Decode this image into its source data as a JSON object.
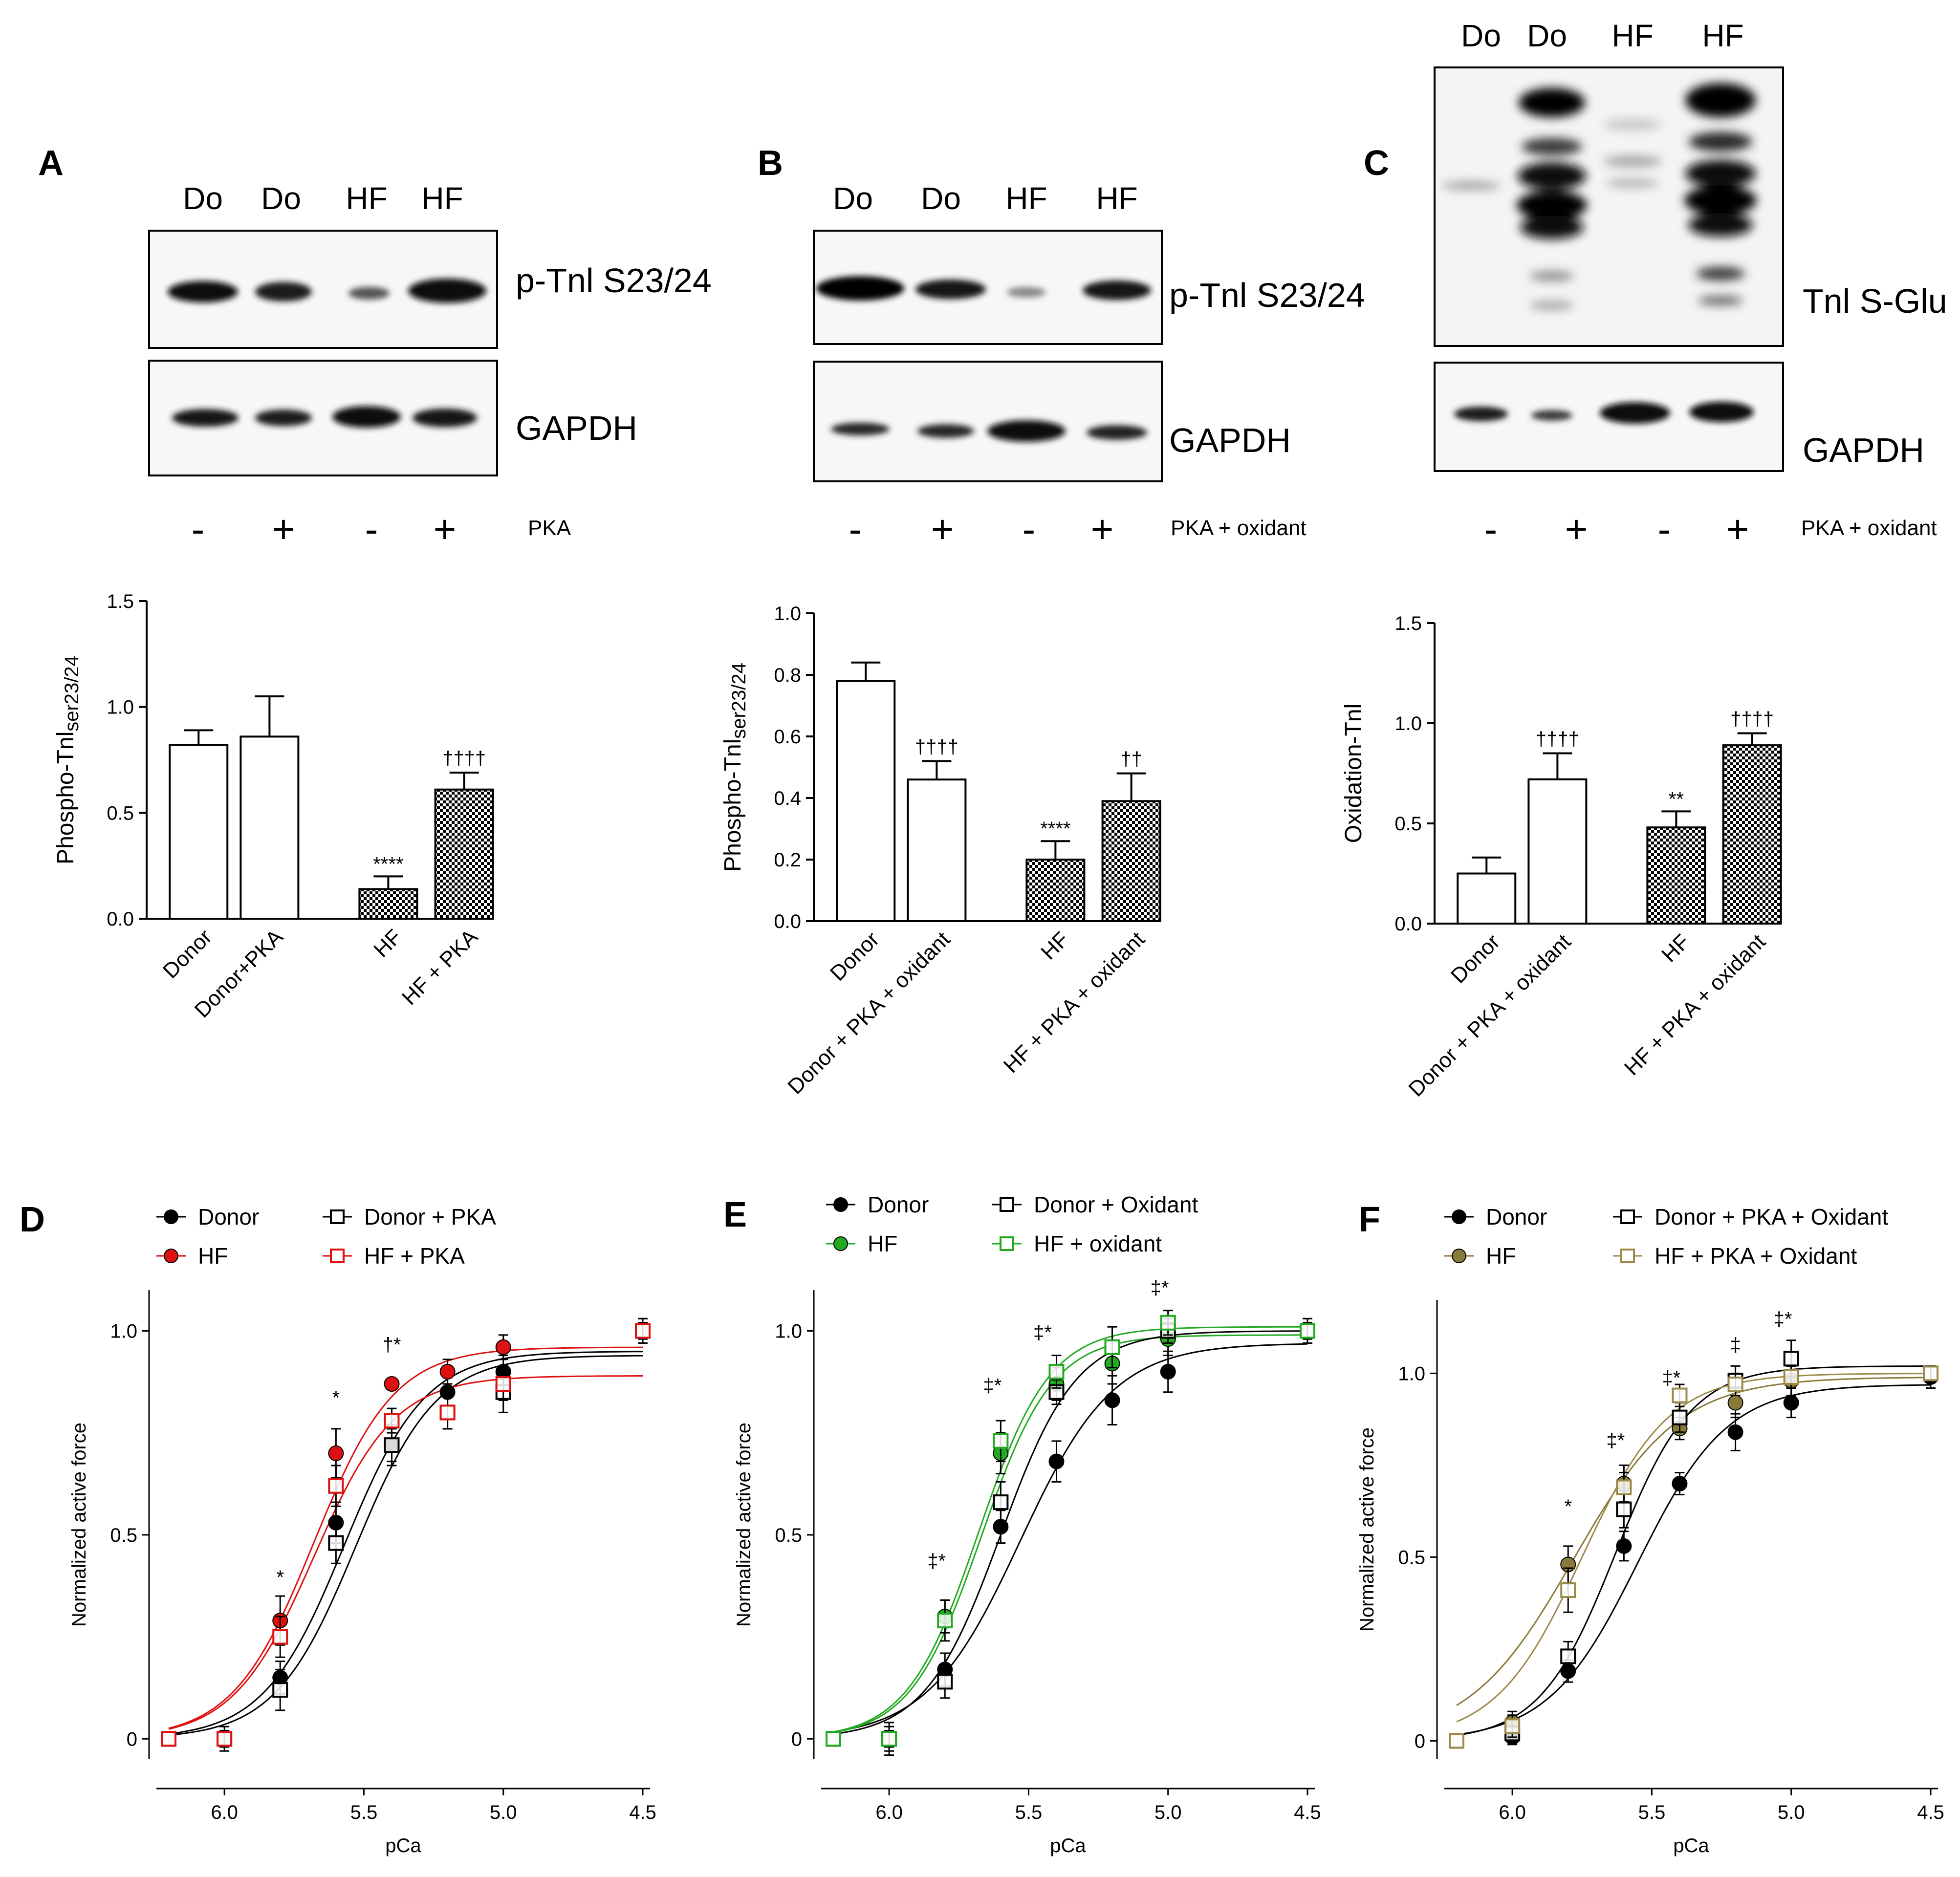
{
  "panels": {
    "A": {
      "label": "A",
      "blot": {
        "lanes": [
          "Do",
          "Do",
          "HF",
          "HF"
        ],
        "band_labels": [
          "p-Tnl  S23/24",
          "GAPDH"
        ],
        "treatment_signs": [
          "-",
          "+",
          "-",
          "+"
        ],
        "treatment_label": "PKA"
      }
    },
    "B": {
      "label": "B",
      "blot": {
        "lanes": [
          "Do",
          "Do",
          "HF",
          "HF"
        ],
        "band_labels": [
          "p-Tnl  S23/24",
          "GAPDH"
        ],
        "treatment_signs": [
          "-",
          "+",
          "-",
          "+"
        ],
        "treatment_label": "PKA + oxidant"
      }
    },
    "C": {
      "label": "C",
      "blot": {
        "lanes": [
          "Do",
          "Do",
          "HF",
          "HF"
        ],
        "band_labels": [
          "Tnl  S-Glu",
          "GAPDH"
        ],
        "treatment_signs": [
          "-",
          "+",
          "-",
          "+"
        ],
        "treatment_label": "PKA + oxidant"
      }
    },
    "D": {
      "label": "D"
    },
    "E": {
      "label": "E"
    },
    "F": {
      "label": "F"
    }
  },
  "chart_data": [
    {
      "id": "A",
      "type": "bar",
      "ylabel_main": "Phospho-Tnl",
      "ylabel_sub": "ser23/24",
      "ylim": [
        0,
        1.5
      ],
      "yticks": [
        "0.0",
        "0.5",
        "1.0",
        "1.5"
      ],
      "categories": [
        "Donor",
        "Donor+PKA",
        "HF",
        "HF + PKA"
      ],
      "values": [
        0.82,
        0.86,
        0.14,
        0.61
      ],
      "errors": [
        0.07,
        0.19,
        0.06,
        0.08
      ],
      "patterns": [
        "open",
        "open",
        "check",
        "check"
      ],
      "annotations": [
        "",
        "",
        "****",
        "††††"
      ]
    },
    {
      "id": "B",
      "type": "bar",
      "ylabel_main": "Phospho-Tnl",
      "ylabel_sub": "ser23/24",
      "ylim": [
        0,
        1.0
      ],
      "yticks": [
        "0.0",
        "0.2",
        "0.4",
        "0.6",
        "0.8",
        "1.0"
      ],
      "categories": [
        "Donor",
        "Donor + PKA + oxidant",
        "HF",
        "HF + PKA + oxidant"
      ],
      "values": [
        0.78,
        0.46,
        0.2,
        0.39
      ],
      "errors": [
        0.06,
        0.06,
        0.06,
        0.09
      ],
      "patterns": [
        "open",
        "open",
        "check",
        "check"
      ],
      "annotations": [
        "",
        "††††",
        "****",
        "††"
      ]
    },
    {
      "id": "C",
      "type": "bar",
      "ylabel_main": "Oxidation-Tnl",
      "ylabel_sub": "",
      "ylim": [
        0,
        1.5
      ],
      "yticks": [
        "0.0",
        "0.5",
        "1.0",
        "1.5"
      ],
      "categories": [
        "Donor",
        "Donor + PKA + oxidant",
        "HF",
        "HF + PKA + oxidant"
      ],
      "values": [
        0.25,
        0.72,
        0.48,
        0.89
      ],
      "errors": [
        0.08,
        0.13,
        0.08,
        0.06
      ],
      "patterns": [
        "open",
        "open",
        "check",
        "check"
      ],
      "annotations": [
        "",
        "††††",
        "**",
        "††††"
      ]
    },
    {
      "id": "D",
      "type": "scatter",
      "xlabel": "pCa",
      "ylabel": "Normalized active force",
      "xlim": [
        6.2,
        4.5
      ],
      "ylim": [
        -0.05,
        1.1
      ],
      "xticks": [
        "6.0",
        "5.5",
        "5.0",
        "4.5"
      ],
      "xtick_values": [
        6.0,
        5.5,
        5.0,
        4.5
      ],
      "yticks": [
        "0",
        "0.5",
        "1.0"
      ],
      "ytick_values": [
        0,
        0.5,
        1.0
      ],
      "x": [
        6.2,
        6.0,
        5.8,
        5.6,
        5.4,
        5.2,
        5.0,
        4.5
      ],
      "series": [
        {
          "name": "Donor",
          "marker": "filled",
          "color": "#000000",
          "values": [
            0,
            0,
            0.15,
            0.53,
            0.72,
            0.85,
            0.9,
            1.0
          ],
          "errors": [
            0,
            0.03,
            0.04,
            0.05,
            0.04,
            0.05,
            0.04,
            0.03
          ],
          "fit": {
            "top": 0.95,
            "pca50": 5.57,
            "n": 3.0
          }
        },
        {
          "name": "HF",
          "marker": "filled",
          "color": "#dd1111",
          "values": [
            0,
            0,
            0.29,
            0.7,
            0.87,
            0.9,
            0.96,
            1.0
          ],
          "errors": [
            0,
            0.02,
            0.06,
            0.06,
            0,
            0.03,
            0.03,
            0.02
          ],
          "fit": {
            "top": 0.96,
            "pca50": 5.68,
            "n": 3.0
          }
        },
        {
          "name": "Donor + PKA",
          "marker": "open",
          "color": "#000000",
          "values": [
            0,
            0,
            0.12,
            0.48,
            0.72,
            0.8,
            0.85,
            1.0
          ],
          "errors": [
            0,
            0.02,
            0.05,
            0.05,
            0.05,
            0.04,
            0.05,
            0.03
          ],
          "fit": {
            "top": 0.94,
            "pca50": 5.53,
            "n": 3.0
          }
        },
        {
          "name": "HF + PKA",
          "marker": "open",
          "color": "#dd1111",
          "values": [
            0,
            0,
            0.25,
            0.62,
            0.78,
            0.8,
            0.87,
            1.0
          ],
          "errors": [
            0,
            0.02,
            0.05,
            0.05,
            0.03,
            0.04,
            0.04,
            0.02
          ],
          "fit": {
            "top": 0.89,
            "pca50": 5.68,
            "n": 3.0
          }
        }
      ],
      "annotations": [
        {
          "x": 5.8,
          "y": 0.38,
          "text": "*"
        },
        {
          "x": 5.6,
          "y": 0.82,
          "text": "*"
        },
        {
          "x": 5.4,
          "y": 0.95,
          "text": "†*"
        }
      ]
    },
    {
      "id": "E",
      "type": "scatter",
      "xlabel": "pCa",
      "ylabel": "Normalized active force",
      "xlim": [
        6.2,
        4.5
      ],
      "ylim": [
        -0.05,
        1.1
      ],
      "xticks": [
        "6.0",
        "5.5",
        "5.0",
        "4.5"
      ],
      "xtick_values": [
        6.0,
        5.5,
        5.0,
        4.5
      ],
      "yticks": [
        "0",
        "0.5",
        "1.0"
      ],
      "ytick_values": [
        0,
        0.5,
        1.0
      ],
      "x": [
        6.2,
        6.0,
        5.8,
        5.6,
        5.4,
        5.2,
        5.0,
        4.5
      ],
      "series": [
        {
          "name": "Donor",
          "marker": "filled",
          "color": "#000000",
          "values": [
            0,
            0,
            0.17,
            0.52,
            0.68,
            0.83,
            0.9,
            1.0
          ],
          "errors": [
            0,
            0.04,
            0.04,
            0.04,
            0.05,
            0.06,
            0.05,
            0.03
          ],
          "fit": {
            "top": 0.97,
            "pca50": 5.53,
            "n": 2.6
          }
        },
        {
          "name": "HF",
          "marker": "filled",
          "color": "#22aa22",
          "values": [
            0,
            0,
            0.3,
            0.7,
            0.87,
            0.92,
            0.98,
            1.0
          ],
          "errors": [
            0,
            0.03,
            0.04,
            0.05,
            0.04,
            0.05,
            0.04,
            0.03
          ],
          "fit": {
            "top": 0.99,
            "pca50": 5.67,
            "n": 3.4
          }
        },
        {
          "name": "Donor + Oxidant",
          "marker": "open",
          "color": "#000000",
          "values": [
            0,
            0,
            0.14,
            0.58,
            0.85,
            0.96,
            1.0,
            1.0
          ],
          "errors": [
            0,
            0.02,
            0.04,
            0.05,
            0.03,
            0.05,
            0.03,
            0.02
          ],
          "fit": {
            "top": 1.0,
            "pca50": 5.6,
            "n": 3.2
          }
        },
        {
          "name": "HF + oxidant",
          "marker": "open",
          "color": "#22aa22",
          "values": [
            0,
            0,
            0.29,
            0.73,
            0.9,
            0.96,
            1.02,
            1.0
          ],
          "errors": [
            0,
            0.02,
            0.05,
            0.05,
            0.04,
            0.05,
            0.03,
            0.02
          ],
          "fit": {
            "top": 1.01,
            "pca50": 5.68,
            "n": 3.4
          }
        }
      ],
      "annotations": [
        {
          "x": 5.83,
          "y": 0.42,
          "text": "‡*"
        },
        {
          "x": 5.63,
          "y": 0.85,
          "text": "‡*"
        },
        {
          "x": 5.45,
          "y": 0.98,
          "text": "‡*"
        },
        {
          "x": 5.03,
          "y": 1.09,
          "text": "‡*"
        }
      ]
    },
    {
      "id": "F",
      "type": "scatter",
      "xlabel": "pCa",
      "ylabel": "Normalized active force",
      "xlim": [
        6.2,
        4.5
      ],
      "ylim": [
        -0.05,
        1.2
      ],
      "xticks": [
        "6.0",
        "5.5",
        "5.0",
        "4.5"
      ],
      "xtick_values": [
        6.0,
        5.5,
        5.0,
        4.5
      ],
      "yticks": [
        "0",
        "0.5",
        "1.0"
      ],
      "ytick_values": [
        0,
        0.5,
        1.0
      ],
      "x": [
        6.2,
        6.0,
        5.8,
        5.6,
        5.4,
        5.2,
        5.0,
        4.5
      ],
      "series": [
        {
          "name": "Donor",
          "marker": "filled",
          "color": "#000000",
          "values": [
            0,
            0.01,
            0.19,
            0.53,
            0.7,
            0.84,
            0.92,
            0.99
          ],
          "errors": [
            0,
            0.02,
            0.03,
            0.04,
            0.03,
            0.05,
            0.04,
            0.03
          ],
          "fit": {
            "top": 0.97,
            "pca50": 5.55,
            "n": 2.7
          }
        },
        {
          "name": "HF",
          "marker": "filled",
          "color": "#8a7a3a",
          "values": [
            0,
            0.05,
            0.48,
            0.7,
            0.85,
            0.92,
            0.98,
            1.0
          ],
          "errors": [
            0,
            0.03,
            0.05,
            0.05,
            0.03,
            0.04,
            0.04,
            0.02
          ],
          "fit": {
            "top": 0.99,
            "pca50": 5.78,
            "n": 2.3
          }
        },
        {
          "name": "Donor + PKA + Oxidant",
          "marker": "open",
          "color": "#000000",
          "values": [
            0,
            0.02,
            0.23,
            0.63,
            0.88,
            0.98,
            1.04,
            1.0
          ],
          "errors": [
            0,
            0.02,
            0.04,
            0.05,
            0.04,
            0.04,
            0.05,
            0.02
          ],
          "fit": {
            "top": 1.02,
            "pca50": 5.63,
            "n": 3.2
          }
        },
        {
          "name": "HF + PKA + Oxidant",
          "marker": "open",
          "color": "#9c8a4a",
          "values": [
            0,
            0.04,
            0.41,
            0.69,
            0.94,
            0.97,
            0.99,
            1.0
          ],
          "errors": [
            0,
            0.03,
            0.06,
            0.04,
            0.03,
            0.03,
            0.03,
            0.02
          ],
          "fit": {
            "top": 1.0,
            "pca50": 5.75,
            "n": 2.8
          }
        }
      ],
      "annotations": [
        {
          "x": 5.8,
          "y": 0.62,
          "text": "*"
        },
        {
          "x": 5.63,
          "y": 0.8,
          "text": "‡*"
        },
        {
          "x": 5.43,
          "y": 0.97,
          "text": "‡*"
        },
        {
          "x": 5.2,
          "y": 1.06,
          "text": "‡"
        },
        {
          "x": 5.03,
          "y": 1.13,
          "text": "‡*"
        }
      ]
    }
  ]
}
